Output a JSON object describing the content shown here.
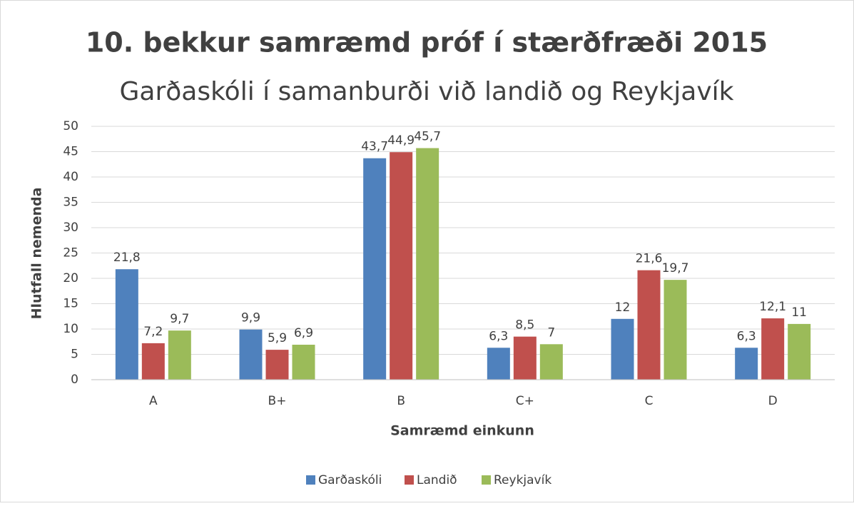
{
  "chart_data": {
    "type": "bar",
    "title": "10. bekkur samræmd próf í stærðfræði 2015",
    "subtitle": "Garðaskóli í samanburði við landið og Reykjavík",
    "x_label": "Samræmd einkunn",
    "y_label": "Hlutfall nemenda",
    "categories": [
      "A",
      "B+",
      "B",
      "C+",
      "C",
      "D"
    ],
    "series": [
      {
        "name": "Garðaskóli",
        "color": "#4f81bd",
        "values": [
          21.8,
          9.9,
          43.7,
          6.3,
          12,
          6.3
        ],
        "value_labels": [
          "21,8",
          "9,9",
          "43,7",
          "6,3",
          "12",
          "6,3"
        ]
      },
      {
        "name": "Landið",
        "color": "#c0504d",
        "values": [
          7.2,
          5.9,
          44.9,
          8.5,
          21.6,
          12.1
        ],
        "value_labels": [
          "7,2",
          "5,9",
          "44,9",
          "8,5",
          "21,6",
          "12,1"
        ]
      },
      {
        "name": "Reykjavík",
        "color": "#9bbb59",
        "values": [
          9.7,
          6.9,
          45.7,
          7,
          19.7,
          11
        ],
        "value_labels": [
          "9,7",
          "6,9",
          "45,7",
          "7",
          "19,7",
          "11"
        ]
      }
    ],
    "ylim": [
      0,
      50
    ],
    "yticks": [
      0,
      5,
      10,
      15,
      20,
      25,
      30,
      35,
      40,
      45,
      50
    ],
    "grid": true,
    "legend": "bottom"
  }
}
